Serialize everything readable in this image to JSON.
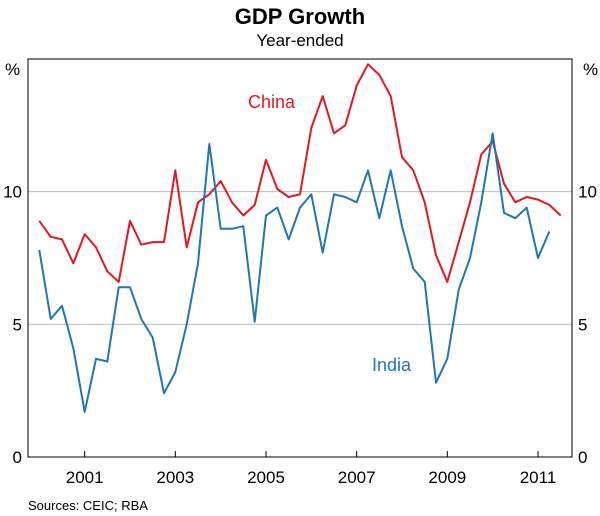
{
  "chart_data": {
    "type": "line",
    "title": "GDP Growth",
    "subtitle": "Year-ended",
    "unit_left": "%",
    "unit_right": "%",
    "ylim": [
      0,
      15
    ],
    "yticks": [
      0,
      5,
      10
    ],
    "xlim": [
      1999.75,
      2011.75
    ],
    "xticks": [
      {
        "label": "2001",
        "value": 2001
      },
      {
        "label": "2003",
        "value": 2003
      },
      {
        "label": "2005",
        "value": 2005
      },
      {
        "label": "2007",
        "value": 2007
      },
      {
        "label": "2009",
        "value": 2009
      },
      {
        "label": "2011",
        "value": 2011
      }
    ],
    "source": "Sources: CEIC; RBA",
    "grid": true,
    "series": [
      {
        "name": "China",
        "label": "China",
        "color": "#e3191f",
        "x": [
          2000.0,
          2000.25,
          2000.5,
          2000.75,
          2001.0,
          2001.25,
          2001.5,
          2001.75,
          2002.0,
          2002.25,
          2002.5,
          2002.75,
          2003.0,
          2003.25,
          2003.5,
          2003.75,
          2004.0,
          2004.25,
          2004.5,
          2004.75,
          2005.0,
          2005.25,
          2005.5,
          2005.75,
          2006.0,
          2006.25,
          2006.5,
          2006.75,
          2007.0,
          2007.25,
          2007.5,
          2007.75,
          2008.0,
          2008.25,
          2008.5,
          2008.75,
          2009.0,
          2009.25,
          2009.5,
          2009.75,
          2010.0,
          2010.25,
          2010.5,
          2010.75,
          2011.0,
          2011.25,
          2011.5
        ],
        "values": [
          8.9,
          8.3,
          8.2,
          7.3,
          8.4,
          7.9,
          7.0,
          6.6,
          8.9,
          8.0,
          8.1,
          8.1,
          10.8,
          7.9,
          9.6,
          9.9,
          10.4,
          9.6,
          9.1,
          9.5,
          11.2,
          10.1,
          9.8,
          9.9,
          12.4,
          13.6,
          12.2,
          12.5,
          14.0,
          14.8,
          14.4,
          13.6,
          11.3,
          10.8,
          9.6,
          7.6,
          6.6,
          8.1,
          9.6,
          11.4,
          11.9,
          10.3,
          9.6,
          9.8,
          9.7,
          9.5,
          9.1
        ]
      },
      {
        "name": "India",
        "label": "India",
        "color": "#1f77b4",
        "x": [
          2000.0,
          2000.25,
          2000.5,
          2000.75,
          2001.0,
          2001.25,
          2001.5,
          2001.75,
          2002.0,
          2002.25,
          2002.5,
          2002.75,
          2003.0,
          2003.25,
          2003.5,
          2003.75,
          2004.0,
          2004.25,
          2004.5,
          2004.75,
          2005.0,
          2005.25,
          2005.5,
          2005.75,
          2006.0,
          2006.25,
          2006.5,
          2006.75,
          2007.0,
          2007.25,
          2007.5,
          2007.75,
          2008.0,
          2008.25,
          2008.5,
          2008.75,
          2009.0,
          2009.25,
          2009.5,
          2009.75,
          2010.0,
          2010.25,
          2010.5,
          2010.75,
          2011.0,
          2011.25
        ],
        "values": [
          7.8,
          5.2,
          5.7,
          4.1,
          1.7,
          3.7,
          3.6,
          6.4,
          6.4,
          5.2,
          4.5,
          2.4,
          3.2,
          5.0,
          7.3,
          11.8,
          8.6,
          8.6,
          8.7,
          5.1,
          9.1,
          9.4,
          8.2,
          9.4,
          9.9,
          7.7,
          9.9,
          9.8,
          9.6,
          10.8,
          9.0,
          10.8,
          8.7,
          7.1,
          6.6,
          2.8,
          3.7,
          6.3,
          7.5,
          9.6,
          12.2,
          9.2,
          9.0,
          9.4,
          7.5,
          8.5
        ]
      }
    ]
  }
}
